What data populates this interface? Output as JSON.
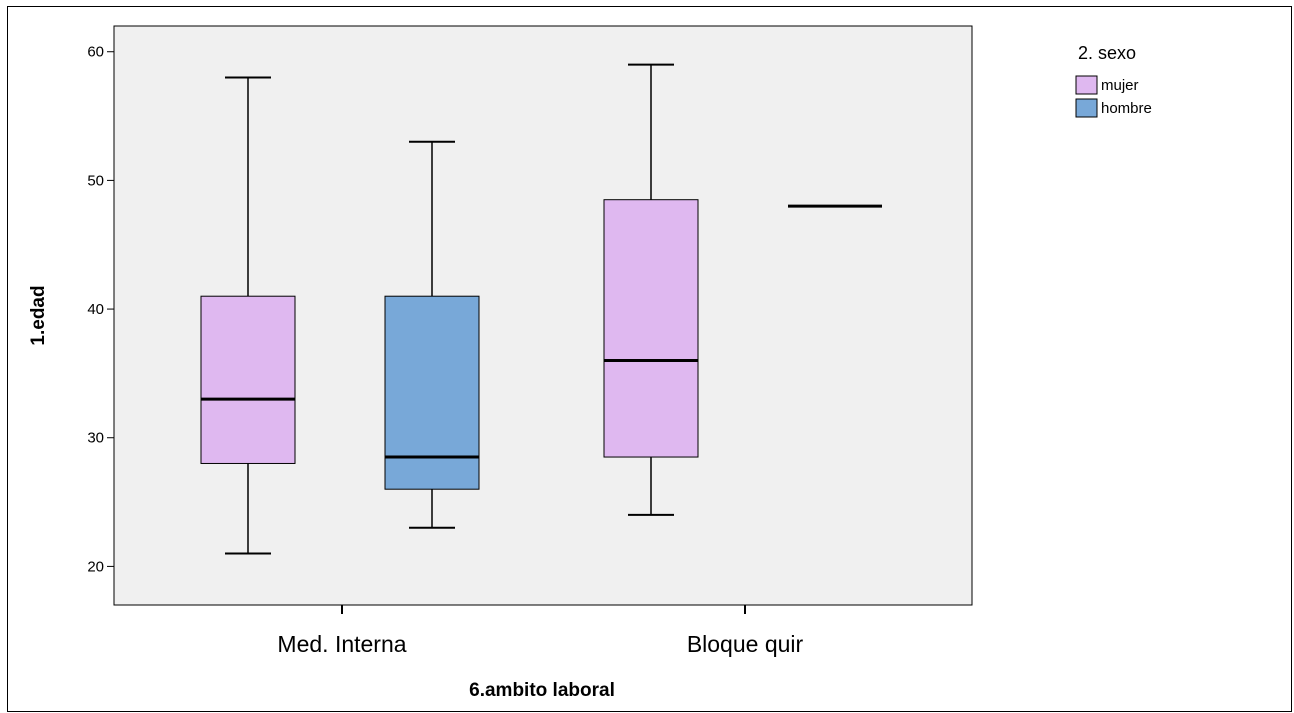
{
  "chart_data": {
    "type": "boxplot",
    "xlabel": "6.ambito laboral",
    "ylabel": "1.edad",
    "ylim": [
      17,
      62
    ],
    "yticks": [
      20,
      30,
      40,
      50,
      60
    ],
    "categories": [
      "Med. Interna",
      "Bloque quir"
    ],
    "legend": {
      "title": "2. sexo",
      "position": "top-right"
    },
    "series": [
      {
        "name": "mujer",
        "color": "#dfb8f0",
        "boxes": [
          {
            "category": "Med. Interna",
            "min": 21,
            "q1": 28,
            "median": 33,
            "q3": 41,
            "max": 58
          },
          {
            "category": "Bloque quir",
            "min": 24,
            "q1": 28.5,
            "median": 36,
            "q3": 48.5,
            "max": 59
          }
        ]
      },
      {
        "name": "hombre",
        "color": "#78a8d8",
        "boxes": [
          {
            "category": "Med. Interna",
            "min": 23,
            "q1": 26,
            "median": 28.5,
            "q3": 41,
            "max": 53
          },
          {
            "category": "Bloque quir",
            "min": 48,
            "q1": 48,
            "median": 48,
            "q3": 48,
            "max": 48
          }
        ]
      }
    ],
    "plot_background": "#f0f0f0"
  }
}
